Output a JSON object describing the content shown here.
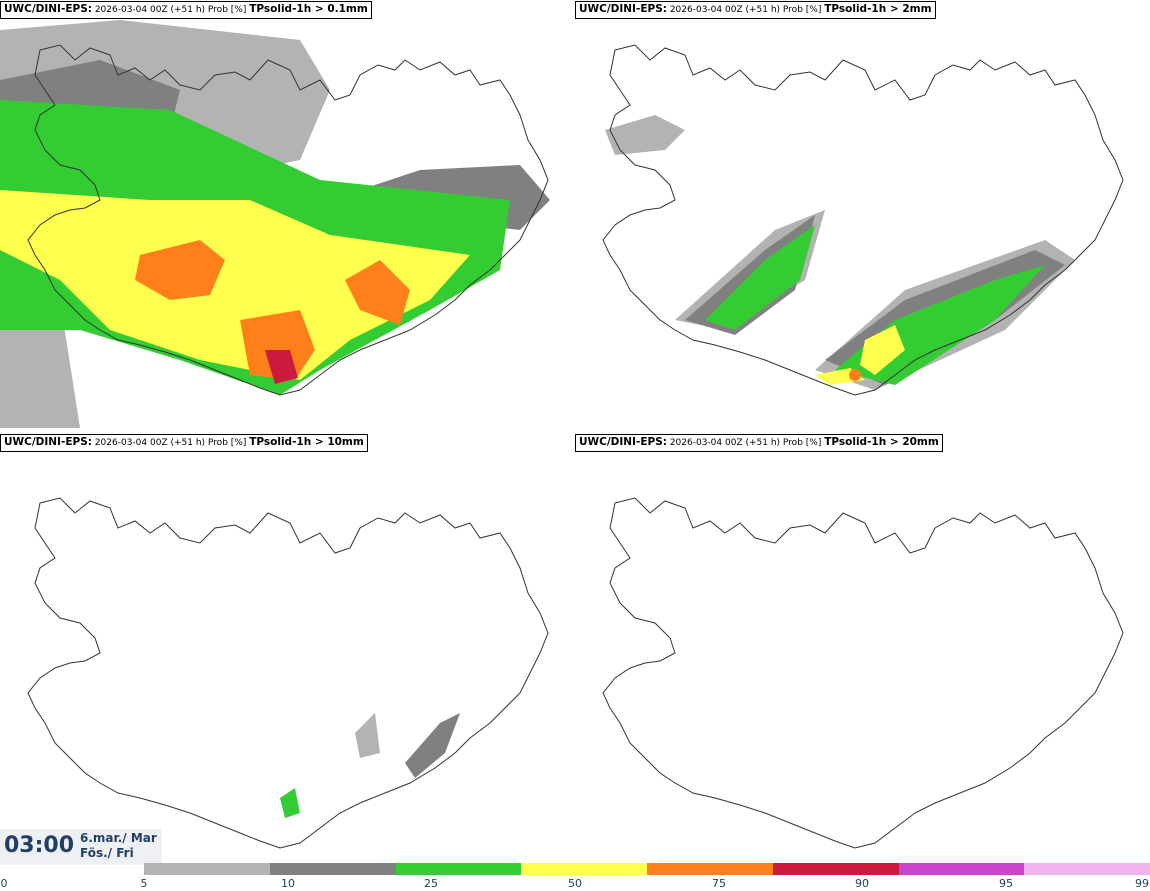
{
  "panels": [
    {
      "model": "UWC/DINI-EPS:",
      "meta": "2026-03-04 00Z (+51 h) Prob [%]",
      "param": "TPsolid-1h > 0.1mm"
    },
    {
      "model": "UWC/DINI-EPS:",
      "meta": "2026-03-04 00Z (+51 h) Prob [%]",
      "param": "TPsolid-1h > 2mm"
    },
    {
      "model": "UWC/DINI-EPS:",
      "meta": "2026-03-04 00Z (+51 h) Prob [%]",
      "param": "TPsolid-1h > 10mm"
    },
    {
      "model": "UWC/DINI-EPS:",
      "meta": "2026-03-04 00Z (+51 h) Prob [%]",
      "param": "TPsolid-1h > 20mm"
    }
  ],
  "valid": {
    "time": "03:00",
    "date": "6.mar./ Mar",
    "day": "Fös./ Fri"
  },
  "legend": {
    "ticks": [
      "0",
      "5",
      "10",
      "25",
      "50",
      "75",
      "90",
      "95",
      "99"
    ],
    "colors": [
      "#b3b3b3",
      "#808080",
      "#33cc33",
      "#ffff4d",
      "#ff7f1a",
      "#cc1a3f",
      "#cc44cc",
      "#f0b3f0"
    ]
  }
}
